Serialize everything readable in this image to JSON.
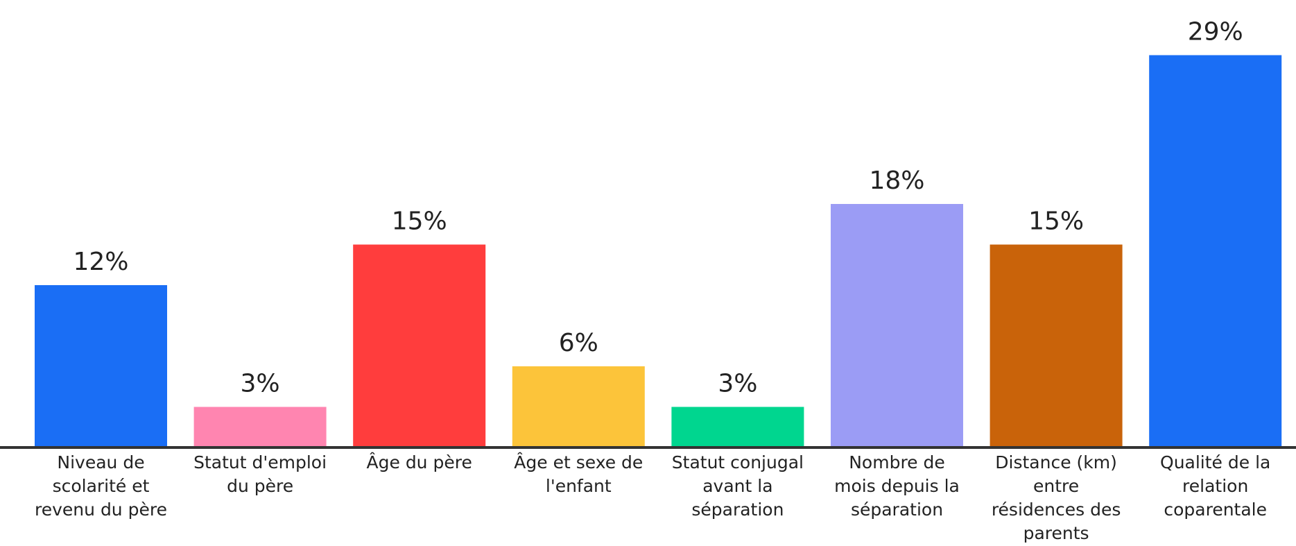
{
  "chart_data": {
    "type": "bar",
    "categories": [
      "Niveau de scolarité et revenu du père",
      "Statut d'emploi du père",
      "Âge du père",
      "Âge et sexe de l'enfant",
      "Statut conjugal avant la séparation",
      "Nombre de mois depuis la séparation",
      "Distance (km) entre résidences des parents",
      "Qualité de la relation coparentale"
    ],
    "values": [
      12,
      3,
      15,
      6,
      3,
      18,
      15,
      29
    ],
    "value_labels": [
      "12%",
      "3%",
      "15%",
      "6%",
      "3%",
      "18%",
      "15%",
      "29%"
    ],
    "colors": [
      "#1a6ef5",
      "#ff85b0",
      "#ff3d3d",
      "#fcc43a",
      "#00d68f",
      "#9b9cf5",
      "#c9630a",
      "#1a6ef5"
    ],
    "ylim": [
      0,
      30
    ]
  }
}
